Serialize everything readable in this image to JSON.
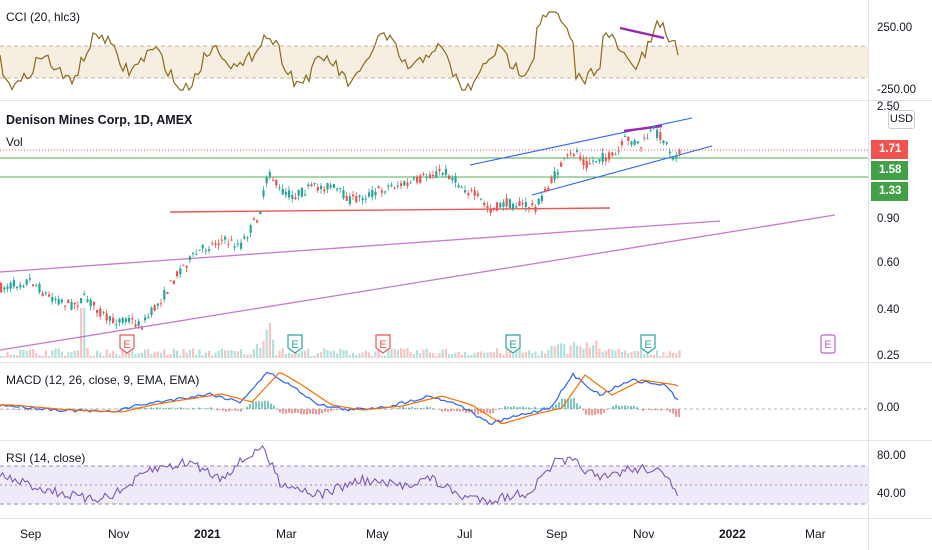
{
  "colors": {
    "cci_line": "#8d6a1c",
    "cci_band": "#f6eee1",
    "bullish_candle": "#26a69a",
    "bearish_candle": "#ef5350",
    "macd_line": "#2962ff",
    "signal_line": "#ff6d00",
    "rsi_line": "#7e57c2",
    "rsi_band": "#efeaf8",
    "divergence": "#9c27b0",
    "channel": "#2962ff",
    "support": "#e8574f",
    "trendline": "#c779d0",
    "tag_red": "#f05350",
    "tag_green": "#43a047",
    "event_green": "#26a69a",
    "event_red": "#ef5350",
    "event_upcoming": "#c35fd1"
  },
  "cci": {
    "label": "CCI (20, hlc3)",
    "axis_labels": [
      "250.00",
      "-250.00"
    ]
  },
  "main": {
    "title": "Denison Mines Corp, 1D, AMEX",
    "vol_label": "Vol",
    "unit": "USD",
    "axis_labels": [
      "2.50",
      "0.90",
      "0.60",
      "0.40",
      "0.25"
    ],
    "price_tags": [
      {
        "value": "1.71",
        "color": "red"
      },
      {
        "value": "1.58",
        "color": "green"
      },
      {
        "value": "1.33",
        "color": "green"
      }
    ],
    "events": [
      {
        "letter": "E",
        "type": "red"
      },
      {
        "letter": "E",
        "type": "green"
      },
      {
        "letter": "E",
        "type": "red"
      },
      {
        "letter": "E",
        "type": "green"
      },
      {
        "letter": "E",
        "type": "green"
      },
      {
        "letter": "E",
        "type": "upcoming"
      }
    ]
  },
  "macd": {
    "label": "MACD (12, 26, close, 9, EMA, EMA)",
    "axis_labels": [
      "0.00"
    ]
  },
  "rsi": {
    "label": "RSI (14, close)",
    "axis_labels": [
      "80.00",
      "40.00"
    ]
  },
  "time_axis": [
    "Sep",
    "Nov",
    "2021",
    "Mar",
    "May",
    "Jul",
    "Sep",
    "Nov",
    "2022",
    "Mar"
  ]
}
